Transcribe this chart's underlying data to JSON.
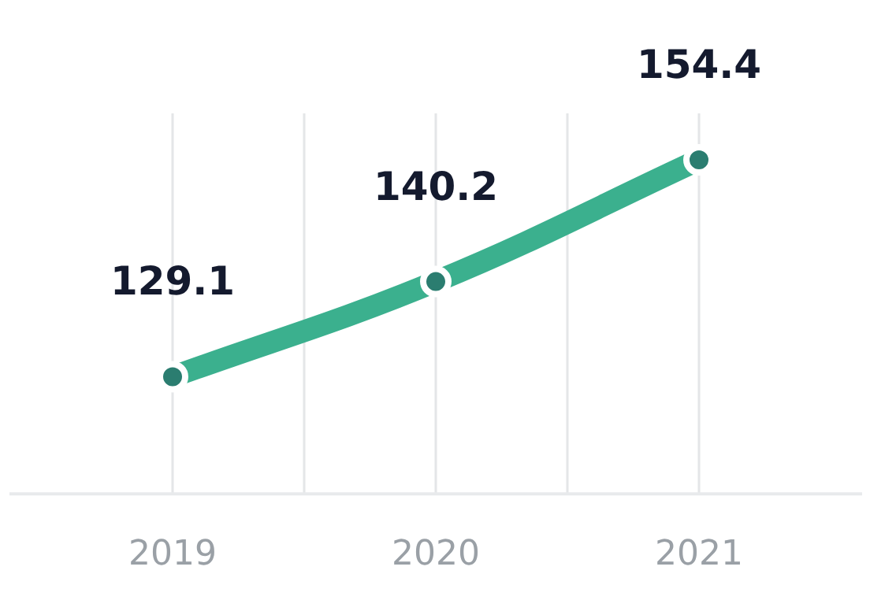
{
  "chart_data": {
    "type": "line",
    "categories": [
      "2019",
      "2020",
      "2021"
    ],
    "series": [
      {
        "color": "#3bb08e",
        "values": [
          129.1,
          140.2,
          154.4
        ]
      }
    ],
    "data_labels": true,
    "grid": "x",
    "marker": "circle",
    "line_style": "solid",
    "legend": false
  }
}
